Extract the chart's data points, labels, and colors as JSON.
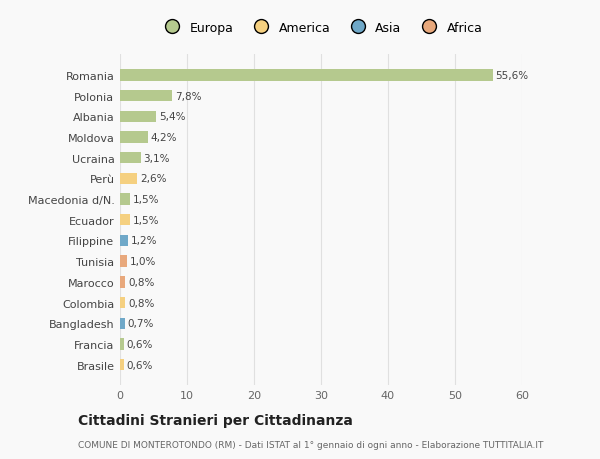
{
  "countries": [
    "Romania",
    "Polonia",
    "Albania",
    "Moldova",
    "Ucraina",
    "Perù",
    "Macedonia d/N.",
    "Ecuador",
    "Filippine",
    "Tunisia",
    "Marocco",
    "Colombia",
    "Bangladesh",
    "Francia",
    "Brasile"
  ],
  "values": [
    55.6,
    7.8,
    5.4,
    4.2,
    3.1,
    2.6,
    1.5,
    1.5,
    1.2,
    1.0,
    0.8,
    0.8,
    0.7,
    0.6,
    0.6
  ],
  "labels": [
    "55,6%",
    "7,8%",
    "5,4%",
    "4,2%",
    "3,1%",
    "2,6%",
    "1,5%",
    "1,5%",
    "1,2%",
    "1,0%",
    "0,8%",
    "0,8%",
    "0,7%",
    "0,6%",
    "0,6%"
  ],
  "colors": [
    "#b5c98e",
    "#b5c98e",
    "#b5c98e",
    "#b5c98e",
    "#b5c98e",
    "#f5d080",
    "#b5c98e",
    "#f5d080",
    "#6fa8c8",
    "#e8a87c",
    "#e8a87c",
    "#f5d080",
    "#6fa8c8",
    "#b5c98e",
    "#f5d080"
  ],
  "legend_labels": [
    "Europa",
    "America",
    "Asia",
    "Africa"
  ],
  "legend_colors": [
    "#b5c98e",
    "#f5d080",
    "#6fa8c8",
    "#e8a87c"
  ],
  "title": "Cittadini Stranieri per Cittadinanza",
  "subtitle": "COMUNE DI MONTEROTONDO (RM) - Dati ISTAT al 1° gennaio di ogni anno - Elaborazione TUTTITALIA.IT",
  "xlim": [
    0,
    60
  ],
  "xticks": [
    0,
    10,
    20,
    30,
    40,
    50,
    60
  ],
  "background_color": "#f9f9f9",
  "grid_color": "#e0e0e0",
  "bar_height": 0.55
}
